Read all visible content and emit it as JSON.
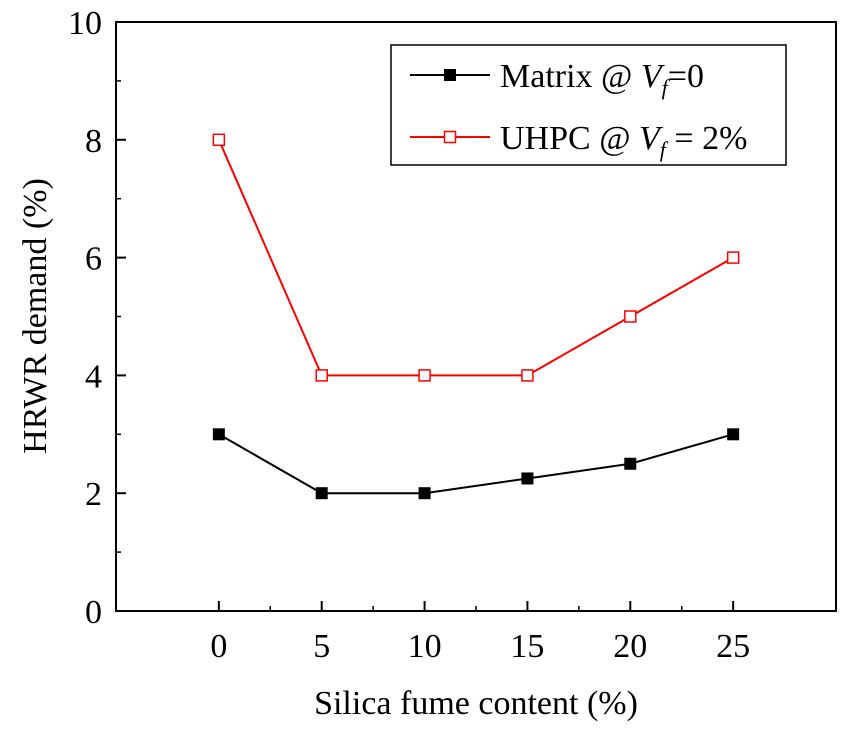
{
  "chart_data": {
    "type": "line",
    "xlabel": "Silica fume content (%)",
    "ylabel": "HRWR demand (%)",
    "xlim": [
      -5,
      30
    ],
    "ylim": [
      0,
      10
    ],
    "xticks": [
      0,
      5,
      10,
      15,
      20,
      25
    ],
    "yticks": [
      0,
      2,
      4,
      6,
      8,
      10
    ],
    "xtick_labels": [
      "0",
      "5",
      "10",
      "15",
      "20",
      "25"
    ],
    "ytick_labels": [
      "0",
      "2",
      "4",
      "6",
      "8",
      "10"
    ],
    "legend_position": "top-right",
    "grid": false,
    "series": [
      {
        "name": "Matrix @ Vf=0",
        "legend_parts": {
          "prefix": "Matrix @ ",
          "var": "V",
          "sub": "f",
          "suffix": "=0"
        },
        "color": "#000000",
        "marker": "filled-square",
        "x": [
          0,
          5,
          10,
          15,
          20,
          25
        ],
        "y": [
          3,
          2,
          2,
          2.25,
          2.5,
          3
        ]
      },
      {
        "name": "UHPC @ Vf = 2%",
        "legend_parts": {
          "prefix": "UHPC @ ",
          "var": "V",
          "sub": "f",
          "suffix": " = 2%"
        },
        "color": "#ff0000",
        "marker": "open-square",
        "x": [
          0,
          5,
          10,
          15,
          20,
          25
        ],
        "y": [
          8,
          4,
          4,
          4,
          5,
          6
        ]
      }
    ]
  }
}
